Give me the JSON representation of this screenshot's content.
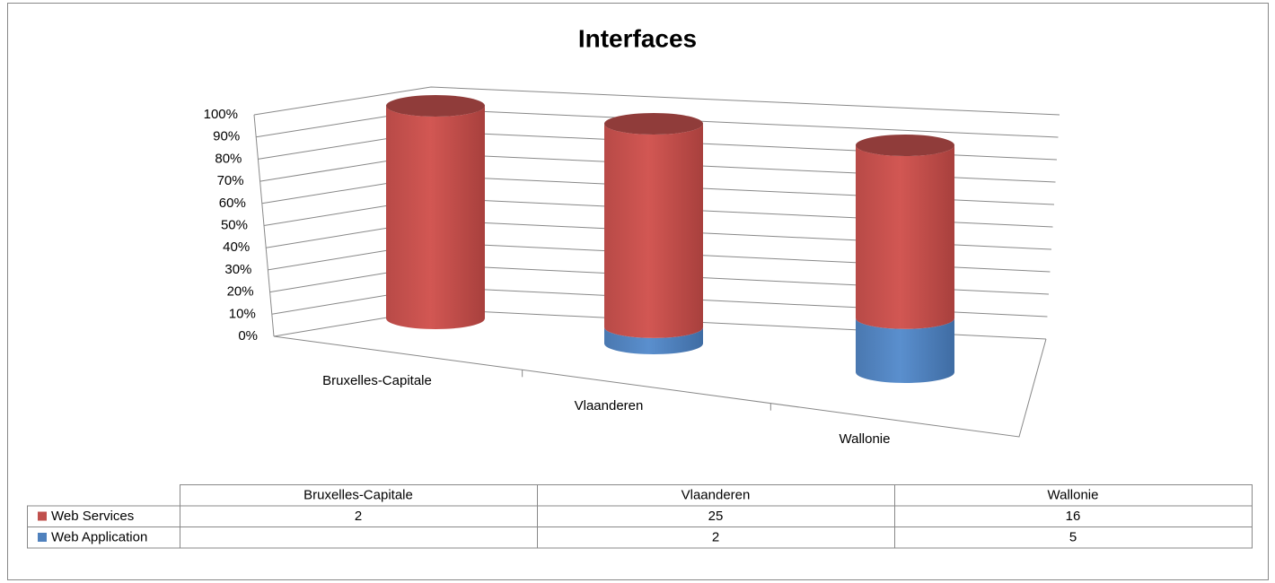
{
  "chart_data": {
    "type": "cylinder",
    "stacking": "percent",
    "title": "Interfaces",
    "categories": [
      "Bruxelles-Capitale",
      "Vlaanderen",
      "Wallonie"
    ],
    "series": [
      {
        "name": "Web Services",
        "color": "#c0504d",
        "values": [
          2,
          25,
          16
        ]
      },
      {
        "name": "Web Application",
        "color": "#4f81bd",
        "values": [
          null,
          2,
          5
        ]
      }
    ],
    "ylim": [
      0,
      100
    ],
    "yticks": [
      {
        "value": 0,
        "label": "0%"
      },
      {
        "value": 10,
        "label": "10%"
      },
      {
        "value": 20,
        "label": "20%"
      },
      {
        "value": 30,
        "label": "30%"
      },
      {
        "value": 40,
        "label": "40%"
      },
      {
        "value": 50,
        "label": "50%"
      },
      {
        "value": 60,
        "label": "60%"
      },
      {
        "value": 70,
        "label": "70%"
      },
      {
        "value": 80,
        "label": "80%"
      },
      {
        "value": 90,
        "label": "90%"
      },
      {
        "value": 100,
        "label": "100%"
      }
    ],
    "grid": true,
    "data_table": true
  }
}
